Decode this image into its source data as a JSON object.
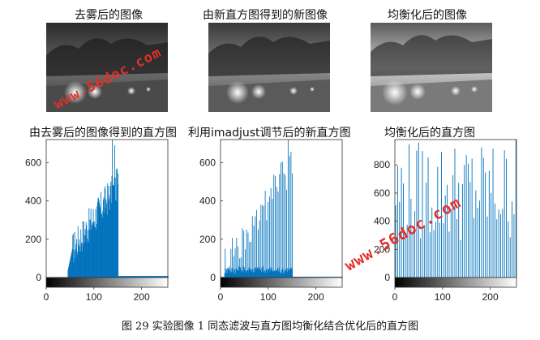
{
  "figure": {
    "caption": "图 29 实验图像 1 同态滤波与直方图均衡化结合优化后的直方图",
    "watermark": "www.56doc.com",
    "watermark_color": "#e0312a"
  },
  "images": [
    {
      "title": "去雾后的图像"
    },
    {
      "title": "由新直方图得到的新图像"
    },
    {
      "title": "均衡化后的图像"
    }
  ],
  "histograms": [
    {
      "title": "由去雾后的图像得到的直方图"
    },
    {
      "title": "利用imadjust调节后的新直方图"
    },
    {
      "title": "均衡化后的直方图"
    }
  ],
  "chart_data": [
    {
      "type": "bar",
      "title": "由去雾后的图像得到的直方图",
      "color": "#0072bd",
      "xlim": [
        0,
        255
      ],
      "ylim": [
        0,
        720
      ],
      "xticks": [
        0,
        100,
        200
      ],
      "yticks": [
        0,
        200,
        400,
        600
      ],
      "x_range_nonzero": [
        45,
        152
      ],
      "peak": 720,
      "mid_level_approx": 380,
      "series_desc": "dense histogram, near zero below 45, rising from ~150 at 55 to ~500 at 130, spikes to ~720 near 140, drops to ~10 after 152"
    },
    {
      "type": "bar",
      "title": "利用imadjust调节后的新直方图",
      "color": "#0072bd",
      "xlim": [
        0,
        255
      ],
      "ylim": [
        0,
        720
      ],
      "xticks": [
        0,
        100,
        200
      ],
      "yticks": [
        0,
        200,
        400,
        600
      ],
      "x_range_nonzero": [
        0,
        152
      ],
      "peak": 720,
      "series_desc": "stretched histogram with comb-like spikes from ~10 to ~150, heights rising from ~50 to ~720, near zero above 152"
    },
    {
      "type": "bar",
      "title": "均衡化后的直方图",
      "color": "#0072bd",
      "xlim": [
        0,
        255
      ],
      "ylim": [
        0,
        980
      ],
      "xticks": [
        0,
        100,
        200
      ],
      "yticks": [
        0,
        200,
        400,
        600,
        800
      ],
      "series_desc": "sparse evenly spread spikes across 0-255, heights roughly 250-980"
    }
  ]
}
